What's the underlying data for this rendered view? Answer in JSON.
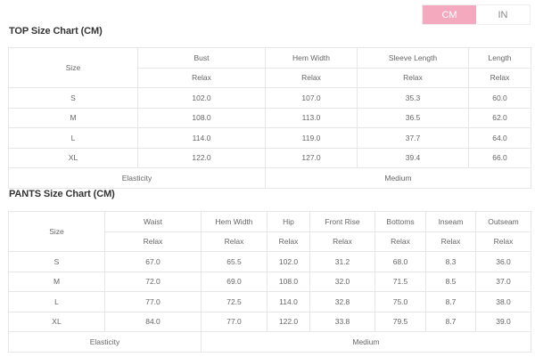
{
  "unit_toggle": {
    "options": [
      "CM",
      "IN"
    ],
    "selected": "CM",
    "accent": "#f4a9bf"
  },
  "top": {
    "title": "TOP Size Chart (CM)",
    "size_label": "Size",
    "columns": [
      "Bust",
      "Hem Width",
      "Sleeve Length",
      "Length"
    ],
    "sub_label": "Relax",
    "rows": [
      {
        "size": "S",
        "values": [
          "102.0",
          "107.0",
          "35.3",
          "60.0"
        ]
      },
      {
        "size": "M",
        "values": [
          "108.0",
          "113.0",
          "36.5",
          "62.0"
        ]
      },
      {
        "size": "L",
        "values": [
          "114.0",
          "119.0",
          "37.7",
          "64.0"
        ]
      },
      {
        "size": "XL",
        "values": [
          "122.0",
          "127.0",
          "39.4",
          "66.0"
        ]
      }
    ],
    "elasticity_label": "Elasticity",
    "elasticity_value": "Medium"
  },
  "pants": {
    "title": "PANTS Size Chart (CM)",
    "size_label": "Size",
    "columns": [
      "Waist",
      "Hem Width",
      "Hip",
      "Front Rise",
      "Bottoms",
      "Inseam",
      "Outseam"
    ],
    "sub_label": "Relax",
    "rows": [
      {
        "size": "S",
        "values": [
          "67.0",
          "65.5",
          "102.0",
          "31.2",
          "68.0",
          "8.3",
          "36.0"
        ]
      },
      {
        "size": "M",
        "values": [
          "72.0",
          "69.0",
          "108.0",
          "32.0",
          "71.5",
          "8.5",
          "37.0"
        ]
      },
      {
        "size": "L",
        "values": [
          "77.0",
          "72.5",
          "114.0",
          "32.8",
          "75.0",
          "8.7",
          "38.0"
        ]
      },
      {
        "size": "XL",
        "values": [
          "84.0",
          "77.0",
          "122.0",
          "33.8",
          "79.5",
          "8.7",
          "39.0"
        ]
      }
    ],
    "elasticity_label": "Elasticity",
    "elasticity_value": "Medium"
  }
}
